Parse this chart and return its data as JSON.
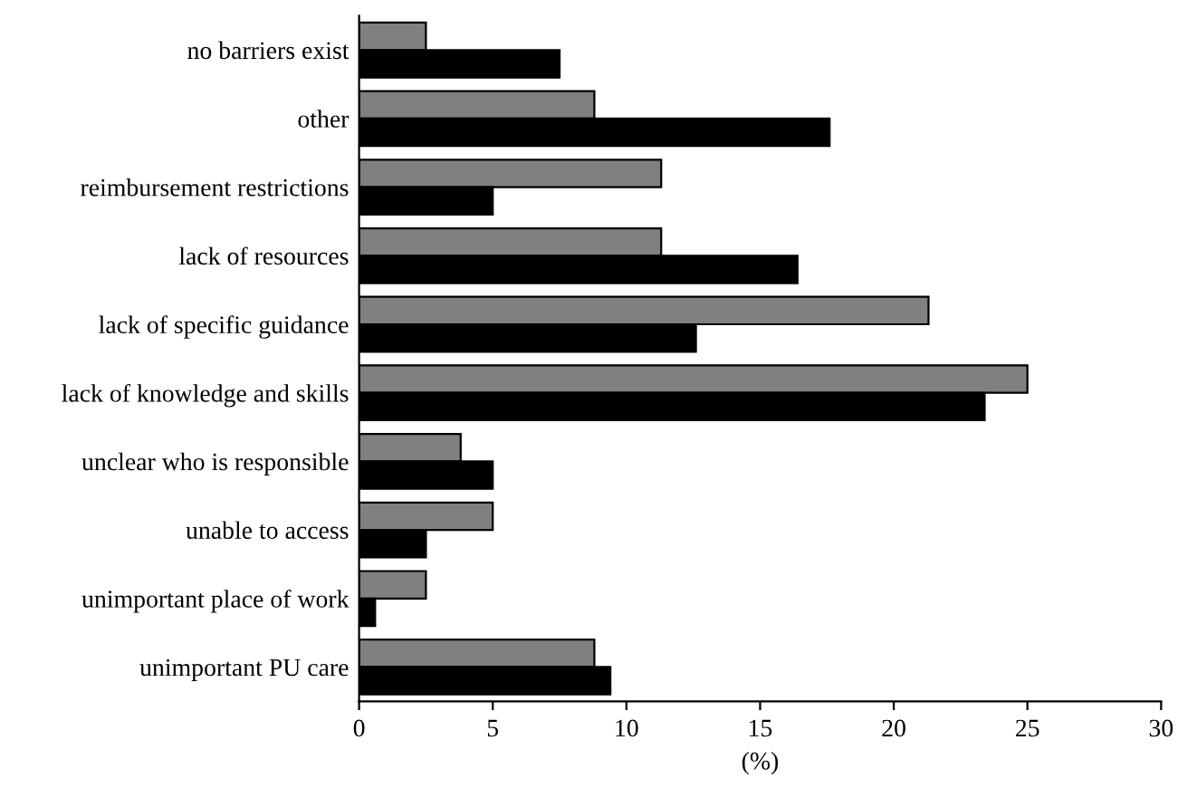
{
  "chart_data": {
    "type": "bar",
    "orientation": "horizontal",
    "xlabel": "(%)",
    "categories": [
      "no barriers exist",
      "other",
      "reimbursement restrictions",
      "lack of resources",
      "lack of specific guidance",
      "lack of knowledge and skills",
      "unclear who is responsible",
      "unable to access",
      "unimportant place of work",
      "unimportant PU care"
    ],
    "series": [
      {
        "color": "#808080",
        "values": [
          2.5,
          8.8,
          11.3,
          11.3,
          21.3,
          25.0,
          3.8,
          5.0,
          2.5,
          8.8
        ]
      },
      {
        "color": "#000000",
        "values": [
          7.5,
          17.6,
          5.0,
          16.4,
          12.6,
          23.4,
          5.0,
          2.5,
          0.6,
          9.4
        ]
      }
    ],
    "xlim": [
      0,
      30
    ],
    "xticks": [
      0,
      5,
      10,
      15,
      20,
      25,
      30
    ],
    "grid": false,
    "legend": false
  }
}
